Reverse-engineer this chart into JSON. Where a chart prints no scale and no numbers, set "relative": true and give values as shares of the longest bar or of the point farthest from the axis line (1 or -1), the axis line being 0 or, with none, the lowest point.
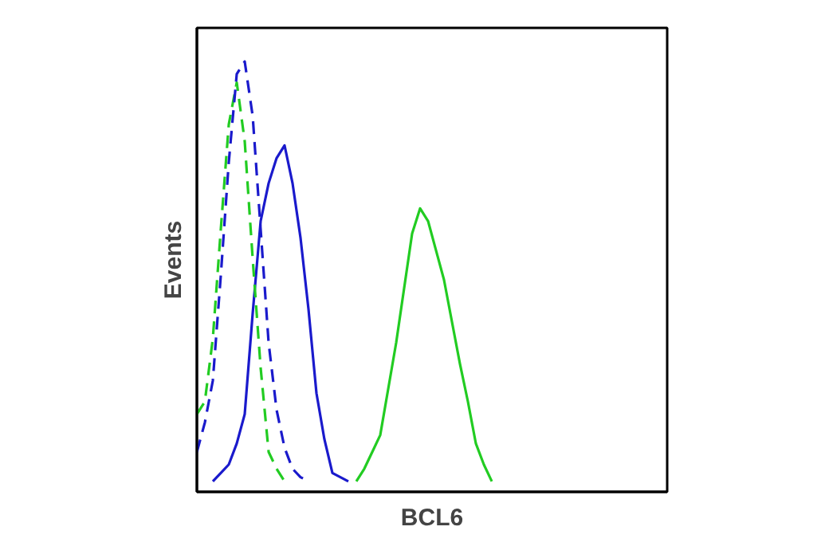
{
  "chart_data": {
    "type": "line",
    "xlabel": "BCL6",
    "ylabel": "Events",
    "relative": true,
    "categories": [
      null,
      null,
      null,
      null,
      null,
      null,
      null,
      null,
      null,
      null,
      null,
      null,
      null,
      null,
      null,
      null,
      null,
      null,
      null,
      null,
      null,
      null,
      null,
      null,
      null,
      null,
      null,
      null,
      null,
      null,
      null,
      null,
      null,
      null,
      null,
      null,
      null,
      null,
      null,
      null,
      null,
      null,
      null,
      null,
      null,
      null,
      null,
      null,
      null,
      null,
      null,
      null,
      null,
      null,
      null,
      null,
      null,
      null,
      null,
      null
    ],
    "series": [
      {
        "color": "#22cc22",
        "line_style": "solid",
        "values": [
          null,
          null,
          null,
          null,
          null,
          null,
          null,
          null,
          null,
          null,
          null,
          null,
          null,
          null,
          null,
          null,
          null,
          null,
          null,
          null,
          0,
          0.03,
          0.07,
          0.11,
          0.22,
          0.33,
          0.46,
          0.59,
          0.65,
          0.62,
          0.55,
          0.48,
          0.38,
          0.28,
          0.19,
          0.09,
          0.04,
          0,
          null,
          null,
          null,
          null,
          null,
          null,
          null,
          null,
          null,
          null,
          null,
          null,
          null,
          null,
          null,
          null,
          null,
          null,
          null,
          null,
          null,
          null
        ]
      },
      {
        "color": "#1a1acc",
        "line_style": "solid",
        "values": [
          null,
          null,
          0,
          0.02,
          0.04,
          0.09,
          0.16,
          0.4,
          0.62,
          0.71,
          0.77,
          0.8,
          0.71,
          0.58,
          0.41,
          0.21,
          0.1,
          0.02,
          0.01,
          0,
          null,
          null,
          null,
          null,
          null,
          null,
          null,
          null,
          null,
          null,
          null,
          null,
          null,
          null,
          null,
          null,
          null,
          null,
          null,
          null,
          null,
          null,
          null,
          null,
          null,
          null,
          null,
          null,
          null,
          null,
          null,
          null,
          null,
          null,
          null,
          null,
          null,
          null,
          null,
          null
        ]
      },
      {
        "color": "#22cc22",
        "line_style": "dashed",
        "values": [
          0.16,
          0.19,
          0.34,
          0.6,
          0.85,
          0.95,
          0.81,
          0.53,
          0.27,
          0.07,
          0.03,
          0,
          null,
          null,
          null,
          null,
          null,
          null,
          null,
          null,
          null,
          null,
          null,
          null,
          null,
          null,
          null,
          null,
          null,
          null,
          null,
          null,
          null,
          null,
          null,
          null,
          null,
          null,
          null,
          null,
          null,
          null,
          null,
          null,
          null,
          null,
          null,
          null,
          null,
          null,
          null,
          null,
          null,
          null,
          null,
          null,
          null,
          null,
          null,
          null
        ]
      },
      {
        "color": "#1a1acc",
        "line_style": "dashed",
        "values": [
          0.07,
          0.14,
          0.24,
          0.49,
          0.76,
          0.97,
          1.0,
          0.87,
          0.6,
          0.33,
          0.17,
          0.08,
          0.03,
          0.01,
          0,
          null,
          null,
          null,
          null,
          null,
          null,
          null,
          null,
          null,
          null,
          null,
          null,
          null,
          null,
          null,
          null,
          null,
          null,
          null,
          null,
          null,
          null,
          null,
          null,
          null,
          null,
          null,
          null,
          null,
          null,
          null,
          null,
          null,
          null,
          null,
          null,
          null,
          null,
          null,
          null,
          null,
          null,
          null,
          null,
          null
        ]
      }
    ]
  }
}
